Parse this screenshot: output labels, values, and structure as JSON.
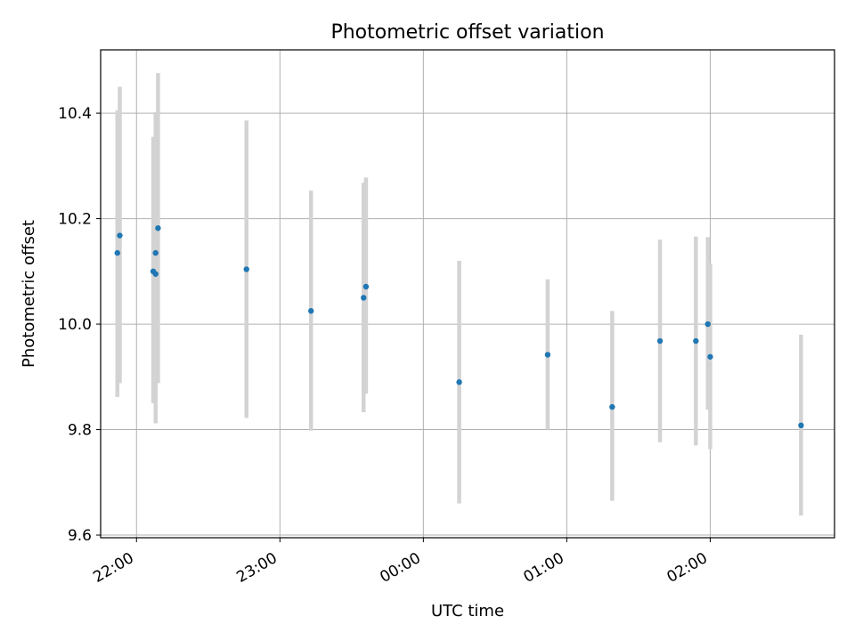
{
  "chart_data": {
    "type": "scatter",
    "title": "Photometric offset variation",
    "xlabel": "UTC time",
    "ylabel": "Photometric offset",
    "x_axis": "time",
    "x_range": [
      "21:45",
      "02:52"
    ],
    "ylim": [
      9.595,
      10.52
    ],
    "x_ticks": [
      "22:00",
      "23:00",
      "00:00",
      "01:00",
      "02:00"
    ],
    "y_ticks": [
      "9.6",
      "9.8",
      "10.0",
      "10.2",
      "10.4"
    ],
    "grid": true,
    "colors": {
      "point": "#1f77b4",
      "errorbar": "#d3d3d3",
      "grid": "#b0b0b0",
      "axes": "#000000"
    },
    "points": [
      {
        "time": "21:52",
        "y": 10.135,
        "lo": 9.862,
        "hi": 10.405
      },
      {
        "time": "21:53",
        "y": 10.168,
        "lo": 9.888,
        "hi": 10.45
      },
      {
        "time": "22:07",
        "y": 10.1,
        "lo": 9.85,
        "hi": 10.355
      },
      {
        "time": "22:08",
        "y": 10.095,
        "lo": 9.812,
        "hi": 10.402
      },
      {
        "time": "22:08",
        "y": 10.135,
        "lo": 9.87,
        "hi": 10.4
      },
      {
        "time": "22:09",
        "y": 10.182,
        "lo": 9.888,
        "hi": 10.476
      },
      {
        "time": "22:46",
        "y": 10.104,
        "lo": 9.822,
        "hi": 10.386
      },
      {
        "time": "23:13",
        "y": 10.025,
        "lo": 9.798,
        "hi": 10.253
      },
      {
        "time": "23:35",
        "y": 10.05,
        "lo": 9.833,
        "hi": 10.268
      },
      {
        "time": "23:36",
        "y": 10.071,
        "lo": 9.868,
        "hi": 10.278
      },
      {
        "time": "00:15",
        "y": 9.89,
        "lo": 9.66,
        "hi": 10.12
      },
      {
        "time": "00:52",
        "y": 9.942,
        "lo": 9.8,
        "hi": 10.085
      },
      {
        "time": "01:19",
        "y": 9.843,
        "lo": 9.665,
        "hi": 10.025
      },
      {
        "time": "01:39",
        "y": 9.968,
        "lo": 9.776,
        "hi": 10.16
      },
      {
        "time": "01:54",
        "y": 9.968,
        "lo": 9.77,
        "hi": 10.166
      },
      {
        "time": "01:59",
        "y": 10.0,
        "lo": 9.838,
        "hi": 10.165
      },
      {
        "time": "02:00",
        "y": 9.938,
        "lo": 9.763,
        "hi": 10.115
      },
      {
        "time": "02:38",
        "y": 9.808,
        "lo": 9.637,
        "hi": 9.98
      }
    ]
  }
}
